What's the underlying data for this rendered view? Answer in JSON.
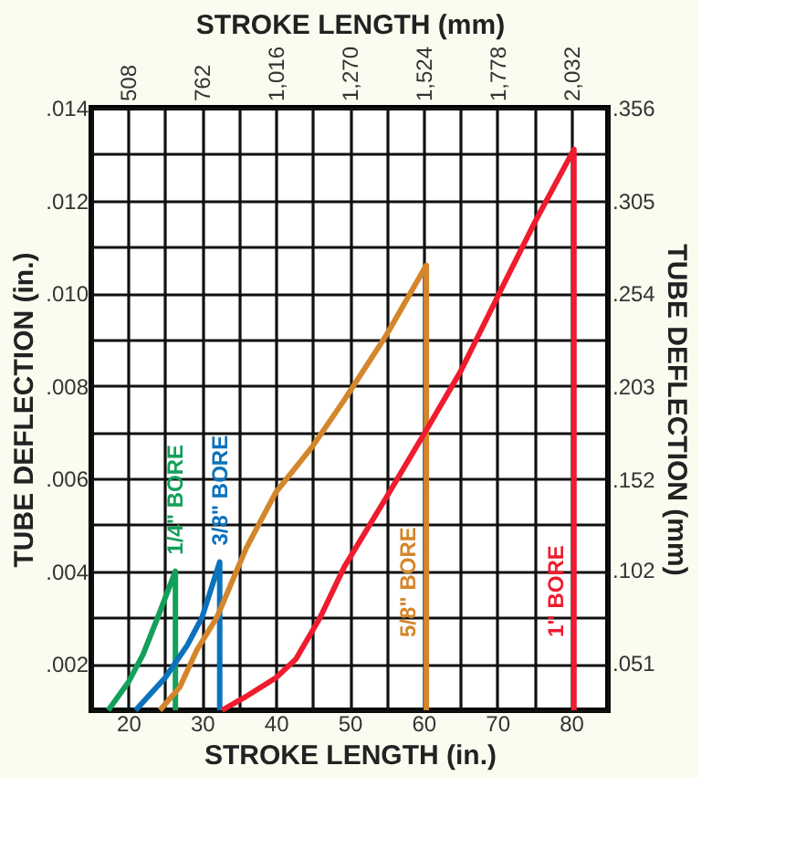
{
  "chart_data": {
    "type": "line",
    "xlabel": "STROKE LENGTH (in.)",
    "x2label": "STROKE LENGTH (mm)",
    "ylabel": "TUBE DEFLECTION (in.)",
    "y2label": "TUBE DEFLECTION (mm)",
    "xlim": [
      15,
      85
    ],
    "xticks": [
      {
        "value": 15,
        "label": null
      },
      20,
      {
        "value": 25,
        "label": null
      },
      30,
      {
        "value": 35,
        "label": null
      },
      40,
      {
        "value": 45,
        "label": null
      },
      50,
      {
        "value": 55,
        "label": null
      },
      60,
      {
        "value": 65,
        "label": null
      },
      70,
      {
        "value": 75,
        "label": null
      },
      80,
      {
        "value": 85,
        "label": null
      }
    ],
    "ylim": [
      0.001,
      0.014
    ],
    "yticks": [
      {
        "value": 0.001,
        "label": null
      },
      {
        "value": 0.002,
        "label": ".002"
      },
      {
        "value": 0.003,
        "label": null
      },
      {
        "value": 0.004,
        "label": ".004"
      },
      {
        "value": 0.005,
        "label": null
      },
      {
        "value": 0.006,
        "label": ".006"
      },
      {
        "value": 0.007,
        "label": null
      },
      {
        "value": 0.008,
        "label": ".008"
      },
      {
        "value": 0.009,
        "label": null
      },
      {
        "value": 0.01,
        "label": ".010"
      },
      {
        "value": 0.011,
        "label": null
      },
      {
        "value": 0.012,
        "label": ".012"
      },
      {
        "value": 0.013,
        "label": null
      },
      {
        "value": 0.014,
        "label": ".014"
      }
    ],
    "x2lim": [
      381,
      2159
    ],
    "x2ticks": [
      {
        "value": 508,
        "label": "508"
      },
      {
        "value": 762,
        "label": "762"
      },
      {
        "value": 1016,
        "label": "1,016"
      },
      {
        "value": 1270,
        "label": "1,270"
      },
      {
        "value": 1524,
        "label": "1,524"
      },
      {
        "value": 1778,
        "label": "1,778"
      },
      {
        "value": 2032,
        "label": "2,032"
      }
    ],
    "y2lim": [
      0.025,
      0.356
    ],
    "y2ticks": [
      {
        "value": 0.051,
        "label": ".051"
      },
      {
        "value": 0.102,
        "label": ".102"
      },
      {
        "value": 0.152,
        "label": ".152"
      },
      {
        "value": 0.203,
        "label": ".203"
      },
      {
        "value": 0.254,
        "label": ".254"
      },
      {
        "value": 0.305,
        "label": ".305"
      },
      {
        "value": 0.356,
        "label": ".356"
      }
    ],
    "grid": true,
    "line_style": "solid",
    "series": [
      {
        "name": "1/4\" BORE",
        "color": "#13a05a",
        "x": [
          17.3,
          20,
          22,
          24,
          26.4,
          26.4
        ],
        "values": [
          0.001,
          0.0016,
          0.0022,
          0.003,
          0.004,
          0.001
        ]
      },
      {
        "name": "3/8\" BORE",
        "color": "#0b72bb",
        "x": [
          21,
          25,
          28,
          30,
          32.4,
          32.4
        ],
        "values": [
          0.001,
          0.0017,
          0.0024,
          0.003,
          0.0042,
          0.001
        ]
      },
      {
        "name": "5/8\" BORE",
        "color": "#d4862b",
        "x": [
          24.3,
          27,
          29.3,
          32,
          36,
          40,
          45,
          49.3,
          55,
          60.4,
          60.4
        ],
        "values": [
          0.001,
          0.0015,
          0.0023,
          0.003,
          0.0045,
          0.0057,
          0.0067,
          0.0077,
          0.0091,
          0.0106,
          0.001
        ]
      },
      {
        "name": "1\" BORE",
        "color": "#ee1c2e",
        "x": [
          32.7,
          36,
          40,
          42.7,
          46,
          49.3,
          55,
          60.6,
          65,
          70.6,
          75,
          80.4,
          80.4
        ],
        "values": [
          0.001,
          0.0013,
          0.0017,
          0.0021,
          0.003,
          0.0041,
          0.0056,
          0.0071,
          0.0083,
          0.0101,
          0.0115,
          0.0131,
          0.001
        ]
      }
    ]
  }
}
